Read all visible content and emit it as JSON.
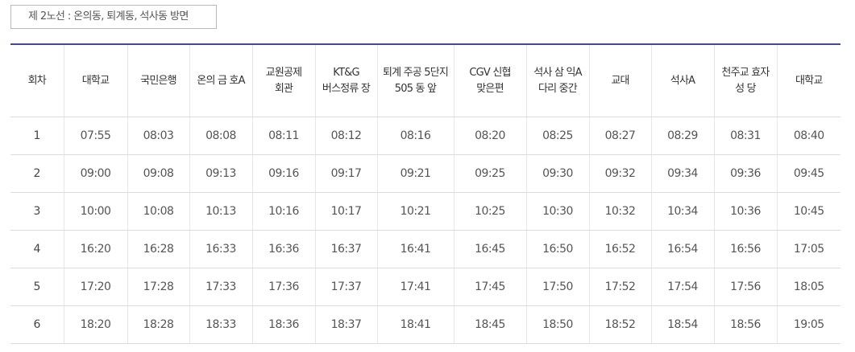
{
  "route_tab": {
    "label": "제 2노선 : 온의동, 퇴계동, 석사동 방면"
  },
  "timetable": {
    "headers": [
      "회차",
      "대학교",
      "국민은행",
      "온의 금 호A",
      "교원공제 회관",
      "KT&G 버스정류 장",
      "퇴계 주공 5단지 505 동 앞",
      "CGV 신협 맞은편",
      "석사 삼 익A 다리 중간",
      "교대",
      "석사A",
      "천주교 효자 성 당",
      "대학교"
    ],
    "rows": [
      [
        "1",
        "07:55",
        "08:03",
        "08:08",
        "08:11",
        "08:12",
        "08:16",
        "08:20",
        "08:25",
        "08:27",
        "08:29",
        "08:31",
        "08:40"
      ],
      [
        "2",
        "09:00",
        "09:08",
        "09:13",
        "09:16",
        "09:17",
        "09:21",
        "09:25",
        "09:30",
        "09:32",
        "09:34",
        "09:36",
        "09:45"
      ],
      [
        "3",
        "10:00",
        "10:08",
        "10:13",
        "10:16",
        "10:17",
        "10:21",
        "10:25",
        "10:30",
        "10:32",
        "10:34",
        "10:36",
        "10:45"
      ],
      [
        "4",
        "16:20",
        "16:28",
        "16:33",
        "16:36",
        "16:37",
        "16:41",
        "16:45",
        "16:50",
        "16:52",
        "16:54",
        "16:56",
        "17:05"
      ],
      [
        "5",
        "17:20",
        "17:28",
        "17:33",
        "17:36",
        "17:37",
        "17:41",
        "17:45",
        "17:50",
        "17:52",
        "17:54",
        "17:56",
        "18:05"
      ],
      [
        "6",
        "18:20",
        "18:28",
        "18:33",
        "18:36",
        "18:37",
        "18:41",
        "18:45",
        "18:50",
        "18:52",
        "18:54",
        "18:56",
        "19:05"
      ]
    ]
  },
  "colors": {
    "header_rule": "#3b4f86",
    "row_border": "#dcdcdc",
    "text": "#555555"
  }
}
